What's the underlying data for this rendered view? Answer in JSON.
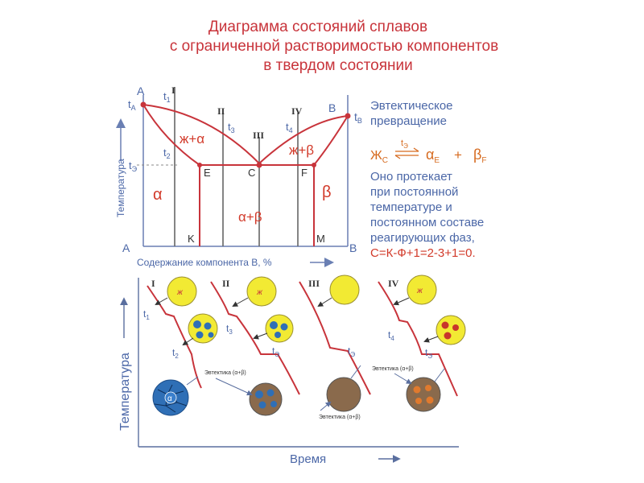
{
  "title": {
    "line1": "Диаграмма состояний сплавов",
    "line2": "с ограниченной растворимостью компонентов",
    "line3": "в твердом состоянии"
  },
  "colors": {
    "red": "#c8343b",
    "blue_text": "#4b67a7",
    "axis": "#6a7fb3",
    "dash": "#888888",
    "liquid_fill": "#f2ea33",
    "alpha_grain": "#2f6fb6",
    "beta_grain": "#c8352b",
    "eutectic_fill": "#8a6a4c"
  },
  "phase_diagram": {
    "corner_A_top": "A",
    "corner_B_top": "B",
    "corner_A_bottom": "A",
    "corner_B_bottom": "B",
    "tA": "t",
    "tA_sub": "A",
    "tB": "t",
    "tB_sub": "B",
    "t1": "t",
    "t1_sub": "1",
    "t2": "t",
    "t2_sub": "2",
    "t3": "t",
    "t3_sub": "3",
    "t4": "t",
    "t4_sub": "4",
    "tE": "t",
    "tE_sub": "Э",
    "points": {
      "E": "E",
      "C": "C",
      "F": "F",
      "K": "K",
      "M": "M"
    },
    "alloys": [
      "I",
      "II",
      "III",
      "IV"
    ],
    "regions": {
      "liquid_alpha": "ж+α",
      "liquid_beta": "ж+β",
      "alpha": "α",
      "beta": "β",
      "alpha_beta": "α+β"
    },
    "y_axis_label": "Температура",
    "x_axis_label": "Содержание компонента B, %"
  },
  "side_text": {
    "heading1": "Эвтектическое",
    "heading2": "превращение",
    "reaction_liquid": "Ж",
    "reaction_liquid_sub": "C",
    "reaction_arrow_label": "t",
    "reaction_arrow_label_sub": "Э",
    "reaction_alpha": "α",
    "reaction_alpha_sub": "E",
    "reaction_plus": "+",
    "reaction_beta": "β",
    "reaction_beta_sub": "F",
    "line1": "Оно протекает",
    "line2": "при постоянной",
    "line3": "температуре и",
    "line4": "постоянном составе",
    "line5": "реагирующих фаз,",
    "rule": "С=К-Ф+1=2-3+1=0."
  },
  "cooling_curves": {
    "y_axis_label": "Температура",
    "x_axis_label": "Время",
    "curve_labels": [
      "I",
      "II",
      "III",
      "IV"
    ],
    "liquid_symbol": "ж",
    "grain_symbol": "α",
    "eutectic_label": "Эвтектика (α+β)",
    "t1": "t",
    "t1_sub": "1",
    "t2": "t",
    "t2_sub": "2",
    "t3": "t",
    "t3_sub": "3",
    "t4": "t",
    "t4_sub": "4",
    "tE": "t",
    "tE_sub": "Э"
  }
}
